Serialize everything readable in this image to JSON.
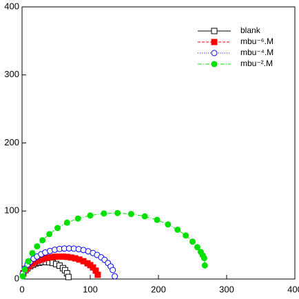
{
  "chart_data": {
    "type": "scatter",
    "xlim": [
      0,
      400
    ],
    "ylim": [
      0,
      400
    ],
    "xticks": [
      0,
      100,
      200,
      300,
      400
    ],
    "yticks": [
      0,
      100,
      200,
      300,
      400
    ],
    "legend": "top-right",
    "series": [
      {
        "name": "blank",
        "color": "#000000",
        "line_style": "solid",
        "marker": "square",
        "marker_fill": "open",
        "x": [
          2,
          5,
          8,
          12,
          16,
          20,
          25,
          30,
          35,
          40,
          45,
          50,
          55,
          60,
          63,
          66,
          68
        ],
        "y": [
          8.4,
          13,
          16,
          19,
          21,
          23,
          24,
          25,
          25,
          24.6,
          23.6,
          22,
          19.6,
          16,
          13,
          8.4,
          3
        ]
      },
      {
        "name": "mbu⁻⁶.M",
        "color": "#ff0000",
        "line_style": "dashed",
        "marker": "square",
        "marker_fill": "filled",
        "x": [
          2,
          6,
          10,
          15,
          20,
          25,
          30,
          36,
          42,
          48,
          54,
          60,
          66,
          72,
          78,
          84,
          90,
          96,
          100,
          104,
          108,
          111
        ],
        "y": [
          8.7,
          14.9,
          18.8,
          22.5,
          25.3,
          27.5,
          29.2,
          30.8,
          32,
          32.7,
          33,
          32.9,
          32.5,
          31.6,
          30.4,
          28.6,
          26.2,
          23.1,
          20.4,
          17,
          12.3,
          6.2
        ]
      },
      {
        "name": "mbu⁻⁴.M",
        "color": "#0000ff",
        "line_style": "dotted",
        "marker": "circle",
        "marker_fill": "open",
        "x": [
          1,
          4,
          8,
          12,
          17,
          22,
          28,
          34,
          41,
          48,
          55,
          62,
          69,
          76,
          83,
          90,
          97,
          104,
          110,
          116,
          121,
          126,
          130,
          133,
          136
        ],
        "y": [
          7.7,
          15.2,
          21.2,
          25.5,
          29.8,
          33.1,
          36.4,
          39,
          41.3,
          43,
          44.2,
          44.8,
          45,
          44.7,
          43.9,
          42.6,
          40.7,
          38.2,
          35.4,
          31.9,
          28.2,
          23.5,
          18.5,
          13.2,
          4
        ]
      },
      {
        "name": "mbu⁻².M",
        "color": "#00e000",
        "line_style": "dashdot",
        "marker": "circle",
        "marker_fill": "filled",
        "x": [
          1,
          4,
          9,
          15,
          22,
          30,
          40,
          52,
          66,
          82,
          100,
          120,
          140,
          160,
          180,
          198,
          214,
          228,
          240,
          250,
          257,
          262,
          265,
          267,
          268
        ],
        "y": [
          4,
          14,
          26,
          38,
          48,
          57,
          66,
          75,
          82.9,
          88.9,
          93.4,
          96.3,
          97,
          95.6,
          92.1,
          86.9,
          80.2,
          72.5,
          64,
          54.9,
          46.8,
          39.8,
          34.6,
          30.7,
          20
        ]
      }
    ]
  }
}
